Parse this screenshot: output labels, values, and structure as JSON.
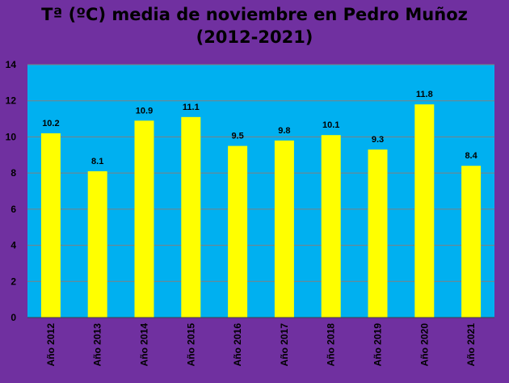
{
  "title_line1": "Tª (ºC) media de noviembre en Pedro Muñoz",
  "title_line2": "(2012-2021)",
  "colors": {
    "background": "#7030a0",
    "plot_area": "#00b0f0",
    "bar": "#ffff00",
    "gridline": "#808080",
    "text": "#000000"
  },
  "chart_data": {
    "type": "bar",
    "title": "Tª (ºC) media de noviembre en Pedro Muñoz (2012-2021)",
    "categories": [
      "Año 2012",
      "Año 2013",
      "Año 2014",
      "Año 2015",
      "Año 2016",
      "Año 2017",
      "Año 2018",
      "Año 2019",
      "Año 2020",
      "Año 2021"
    ],
    "values": [
      10.2,
      8.1,
      10.9,
      11.1,
      9.5,
      9.8,
      10.1,
      9.3,
      11.8,
      8.4
    ],
    "value_labels": [
      "10.2",
      "8.1",
      "10.9",
      "11.1",
      "9.5",
      "9.8",
      "10.1",
      "9.3",
      "11.8",
      "8.4"
    ],
    "ylim": [
      0,
      14
    ],
    "yticks": [
      0,
      2,
      4,
      6,
      8,
      10,
      12,
      14
    ],
    "xlabel": "",
    "ylabel": "",
    "grid": true,
    "legend": "none"
  }
}
